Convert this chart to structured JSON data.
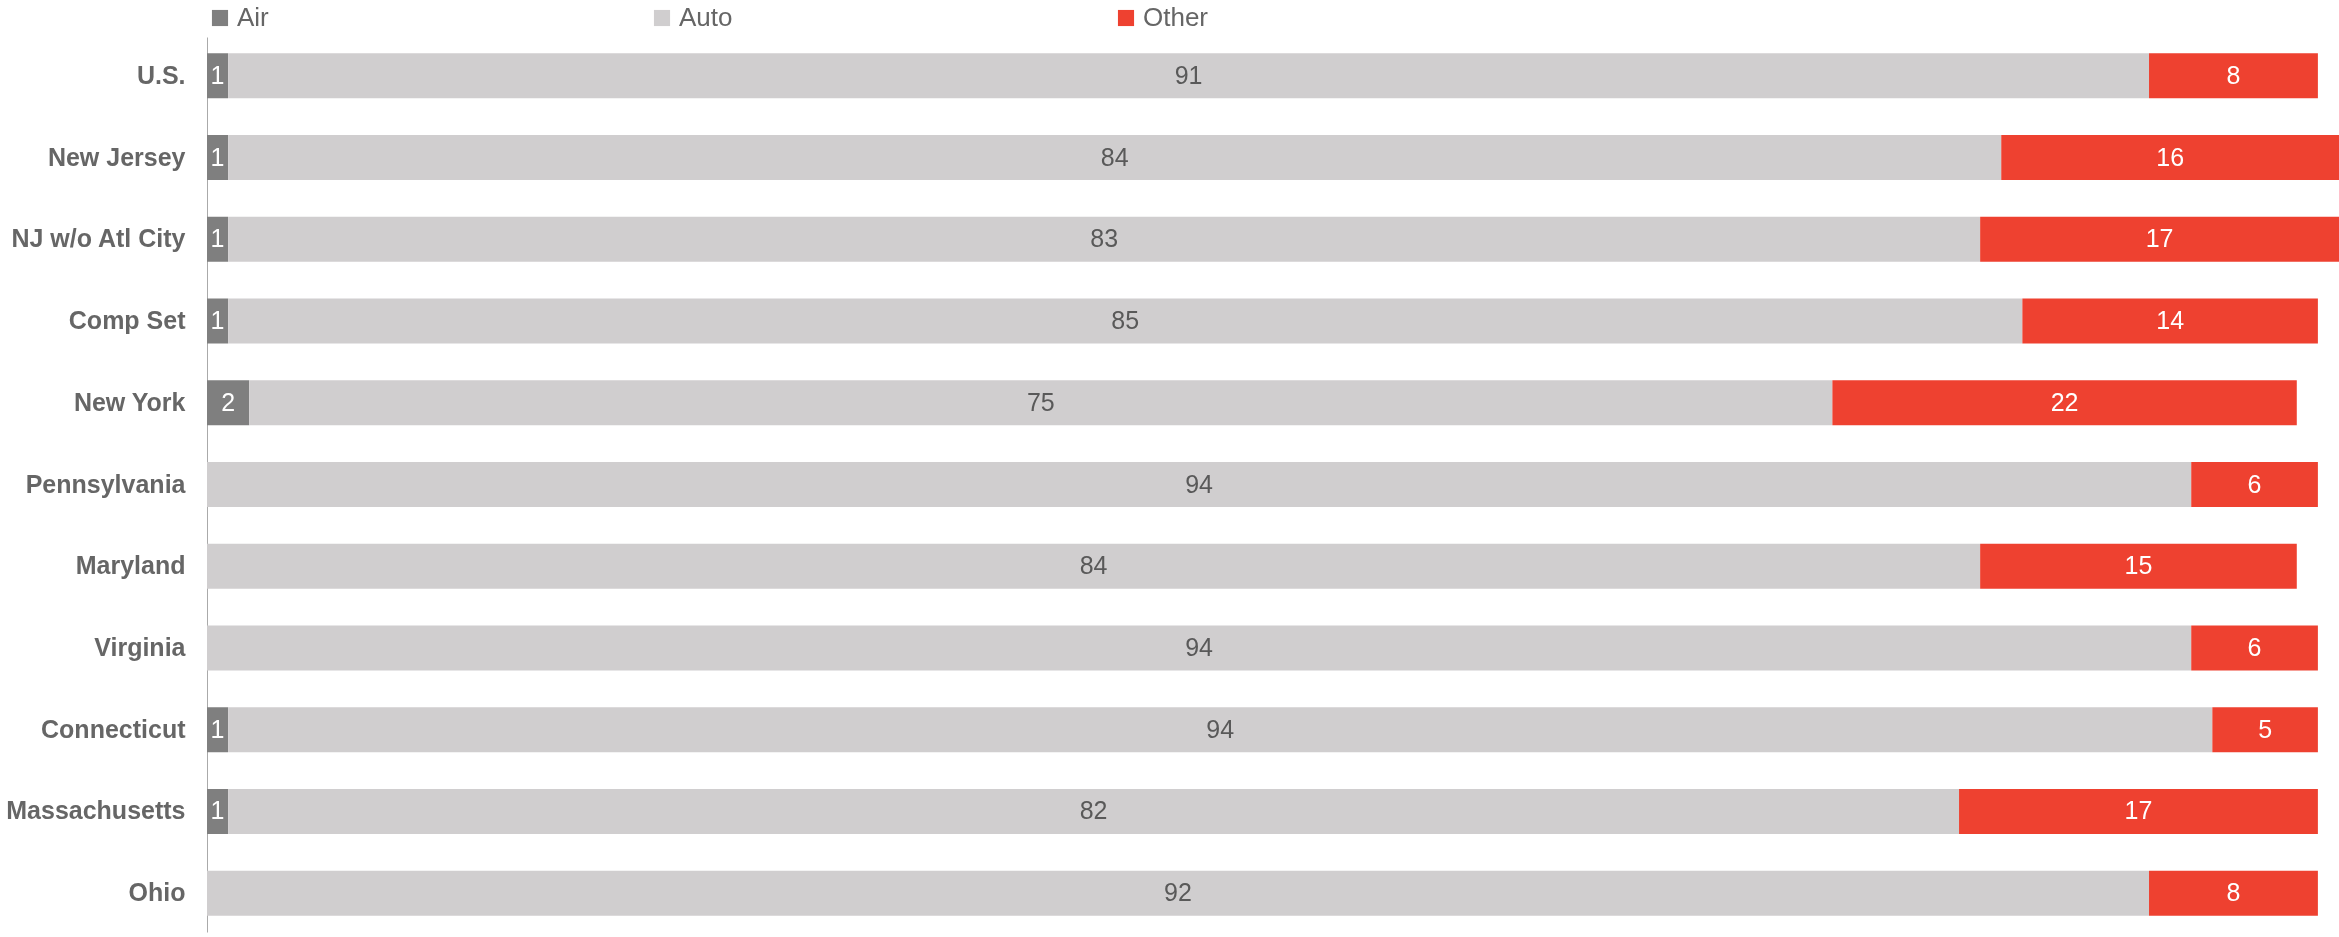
{
  "chart_data": {
    "type": "bar",
    "orientation": "horizontal",
    "stacked": true,
    "categories": [
      "U.S.",
      "New Jersey",
      "NJ w/o Atl City",
      "Comp Set",
      "New York",
      "Pennsylvania",
      "Maryland",
      "Virginia",
      "Connecticut",
      "Massachusetts",
      "Ohio"
    ],
    "series": [
      {
        "name": "Air",
        "color": "#7f7f7f",
        "values": [
          1,
          1,
          1,
          1,
          2,
          null,
          null,
          null,
          1,
          1,
          null
        ]
      },
      {
        "name": "Auto",
        "color": "#d0cecf",
        "values": [
          91,
          84,
          83,
          85,
          75,
          94,
          84,
          94,
          94,
          82,
          92
        ]
      },
      {
        "name": "Other",
        "color": "#ee4130",
        "values": [
          8,
          16,
          17,
          14,
          22,
          6,
          15,
          6,
          5,
          17,
          8
        ]
      }
    ],
    "xlim": [
      0,
      101
    ],
    "data_labels": true,
    "legend": "top",
    "grid": false,
    "tick_labels": "y"
  }
}
